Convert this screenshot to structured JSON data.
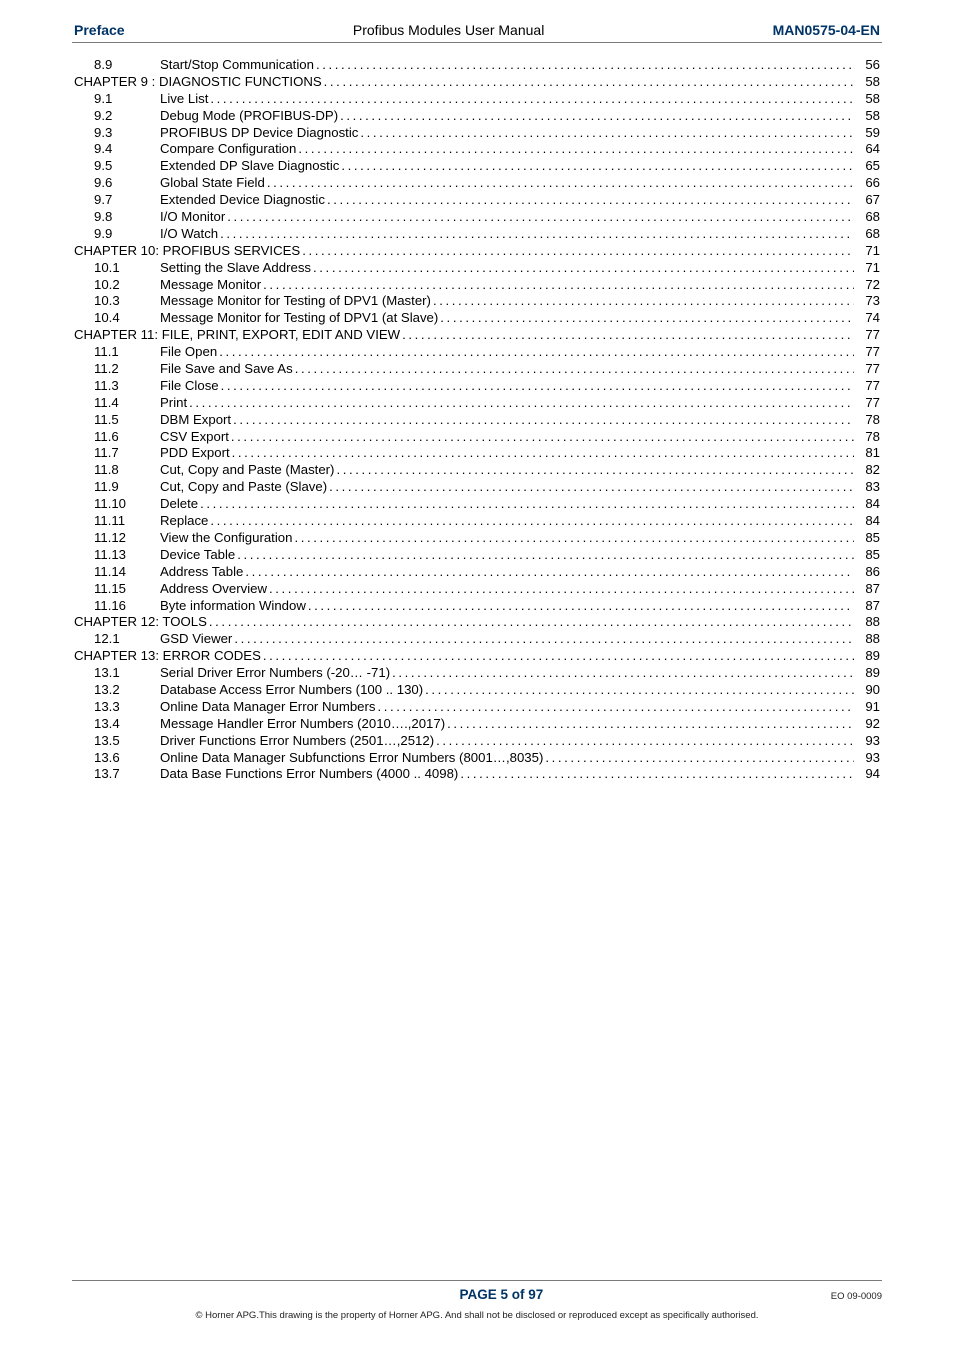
{
  "header": {
    "left": "Preface",
    "center": "Profibus Modules User Manual",
    "right": "MAN0575-04-EN"
  },
  "toc": [
    {
      "level": 2,
      "num": "8.9",
      "title": "Start/Stop Communication",
      "page": "56"
    },
    {
      "level": 1,
      "num": "",
      "title": "CHAPTER 9 : DIAGNOSTIC FUNCTIONS",
      "page": "58"
    },
    {
      "level": 2,
      "num": "9.1",
      "title": "Live List",
      "page": "58"
    },
    {
      "level": 2,
      "num": "9.2",
      "title": "Debug Mode (PROFIBUS-DP)",
      "page": "58"
    },
    {
      "level": 2,
      "num": "9.3",
      "title": "PROFIBUS DP Device Diagnostic",
      "page": "59"
    },
    {
      "level": 2,
      "num": "9.4",
      "title": "Compare Configuration",
      "page": "64"
    },
    {
      "level": 2,
      "num": "9.5",
      "title": "Extended DP Slave Diagnostic",
      "page": "65"
    },
    {
      "level": 2,
      "num": "9.6",
      "title": "Global State Field",
      "page": "66"
    },
    {
      "level": 2,
      "num": "9.7",
      "title": "Extended Device Diagnostic",
      "page": "67"
    },
    {
      "level": 2,
      "num": "9.8",
      "title": "I/O Monitor",
      "page": "68"
    },
    {
      "level": 2,
      "num": "9.9",
      "title": "I/O Watch",
      "page": "68"
    },
    {
      "level": 1,
      "num": "",
      "title": "CHAPTER 10: PROFIBUS SERVICES",
      "page": "71"
    },
    {
      "level": 2,
      "num": "10.1",
      "title": "Setting the Slave Address",
      "page": "71"
    },
    {
      "level": 2,
      "num": "10.2",
      "title": "Message Monitor",
      "page": "72"
    },
    {
      "level": 2,
      "num": "10.3",
      "title": "Message Monitor for Testing of DPV1 (Master)",
      "page": "73"
    },
    {
      "level": 2,
      "num": "10.4",
      "title": "Message Monitor for Testing of DPV1 (at Slave)",
      "page": "74"
    },
    {
      "level": 1,
      "num": "",
      "title": "CHAPTER 11: FILE, PRINT, EXPORT, EDIT AND VIEW",
      "page": "77"
    },
    {
      "level": 2,
      "num": "11.1",
      "title": "File Open",
      "page": "77"
    },
    {
      "level": 2,
      "num": "11.2",
      "title": "File Save and Save As",
      "page": "77"
    },
    {
      "level": 2,
      "num": "11.3",
      "title": "File Close",
      "page": "77"
    },
    {
      "level": 2,
      "num": "11.4",
      "title": "Print",
      "page": "77"
    },
    {
      "level": 2,
      "num": "11.5",
      "title": "DBM Export",
      "page": "78"
    },
    {
      "level": 2,
      "num": "11.6",
      "title": "CSV Export",
      "page": "78"
    },
    {
      "level": 2,
      "num": "11.7",
      "title": "PDD Export",
      "page": "81"
    },
    {
      "level": 2,
      "num": "11.8",
      "title": "Cut, Copy and Paste (Master)",
      "page": "82"
    },
    {
      "level": 2,
      "num": "11.9",
      "title": "Cut, Copy and Paste (Slave)",
      "page": "83"
    },
    {
      "level": 2,
      "num": "11.10",
      "title": "Delete",
      "page": "84"
    },
    {
      "level": 2,
      "num": "11.11",
      "title": "Replace",
      "page": "84"
    },
    {
      "level": 2,
      "num": "11.12",
      "title": "View the Configuration",
      "page": "85"
    },
    {
      "level": 2,
      "num": "11.13",
      "title": "Device Table",
      "page": "85"
    },
    {
      "level": 2,
      "num": "11.14",
      "title": "Address Table",
      "page": "86"
    },
    {
      "level": 2,
      "num": "11.15",
      "title": "Address Overview",
      "page": "87"
    },
    {
      "level": 2,
      "num": "11.16",
      "title": "Byte information Window",
      "page": "87"
    },
    {
      "level": 1,
      "num": "",
      "title": "CHAPTER 12: TOOLS",
      "page": "88"
    },
    {
      "level": 2,
      "num": "12.1",
      "title": "GSD Viewer",
      "page": "88"
    },
    {
      "level": 1,
      "num": "",
      "title": "CHAPTER 13: ERROR CODES",
      "page": "89"
    },
    {
      "level": 2,
      "num": "13.1",
      "title": "Serial Driver Error Numbers (-20… -71)",
      "page": "89"
    },
    {
      "level": 2,
      "num": "13.2",
      "title": "Database Access Error Numbers (100 .. 130)",
      "page": "90"
    },
    {
      "level": 2,
      "num": "13.3",
      "title": "Online Data Manager Error Numbers",
      "page": "91"
    },
    {
      "level": 2,
      "num": "13.4",
      "title": "Message Handler Error Numbers  (2010….,2017)",
      "page": "92"
    },
    {
      "level": 2,
      "num": "13.5",
      "title": "Driver Functions Error Numbers (2501…,2512)",
      "page": "93"
    },
    {
      "level": 2,
      "num": "13.6",
      "title": "Online Data Manager Subfunctions Error Numbers (8001…,8035)",
      "page": "93"
    },
    {
      "level": 2,
      "num": "13.7",
      "title": "Data Base Functions Error Numbers (4000 .. 4098)",
      "page": "94"
    }
  ],
  "footer": {
    "page_label": "PAGE 5 of 97",
    "doc_code": "EO 09-0009",
    "copyright": "© Horner APG.This drawing is the property of Horner APG. And shall not be disclosed or reproduced except as specifically authorised."
  }
}
